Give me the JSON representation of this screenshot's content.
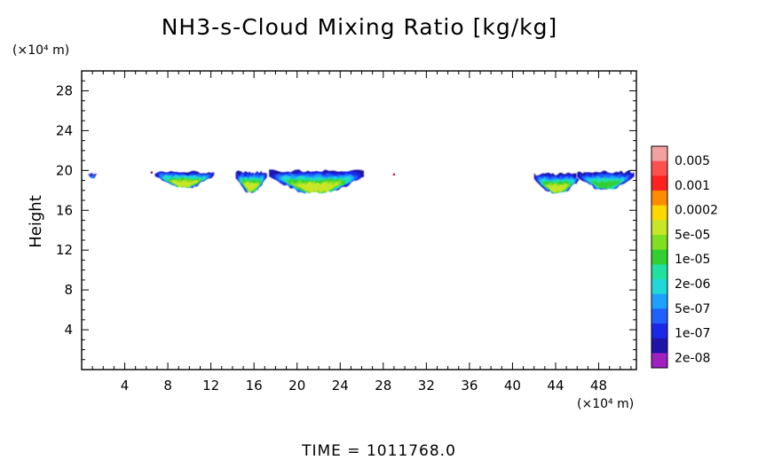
{
  "chart_data": {
    "type": "heatmap",
    "title": "NH3-s-Cloud Mixing Ratio [kg/kg]",
    "ylabel": "Height",
    "y_unit": "(×10⁴ m)",
    "x_unit": "(×10⁴ m)",
    "xlim": [
      0,
      51.5
    ],
    "ylim": [
      0,
      30
    ],
    "x_ticks": [
      4,
      8,
      12,
      16,
      20,
      24,
      28,
      32,
      36,
      40,
      44,
      48
    ],
    "y_ticks": [
      4,
      8,
      12,
      16,
      20,
      24,
      28
    ],
    "time_label": "TIME = 1011768.0",
    "colorbar": {
      "labels": [
        "0.005",
        "0.001",
        "0.0002",
        "5e-05",
        "1e-05",
        "2e-06",
        "5e-07",
        "1e-07",
        "2e-08"
      ],
      "colors_top_to_bottom": [
        "#f4a0a0",
        "#ff5050",
        "#ff2020",
        "#ff8c00",
        "#ffd800",
        "#c8e628",
        "#80e020",
        "#30d030",
        "#20e0a0",
        "#20d8d8",
        "#1ea0ff",
        "#2060ff",
        "#1c28e8",
        "#1e14a8",
        "#a020c0"
      ]
    },
    "clusters": [
      {
        "x_range": [
          0.6,
          1.4
        ],
        "y_top": 19.8,
        "y_bottom": 19.2,
        "max_level": "5e-07"
      },
      {
        "x_range": [
          6.8,
          12.3
        ],
        "y_top": 20.0,
        "y_bottom": 18.2,
        "max_level": "5e-05"
      },
      {
        "x_range": [
          14.3,
          17.2
        ],
        "y_top": 20.0,
        "y_bottom": 17.7,
        "max_level": "5e-05"
      },
      {
        "x_range": [
          17.4,
          26.2
        ],
        "y_top": 20.1,
        "y_bottom": 17.6,
        "max_level": "5e-05"
      },
      {
        "x_range": [
          42.0,
          46.3
        ],
        "y_top": 19.8,
        "y_bottom": 17.6,
        "max_level": "5e-05"
      },
      {
        "x_range": [
          46.0,
          51.3
        ],
        "y_top": 20.0,
        "y_bottom": 18.0,
        "max_level": "1e-05"
      }
    ]
  }
}
